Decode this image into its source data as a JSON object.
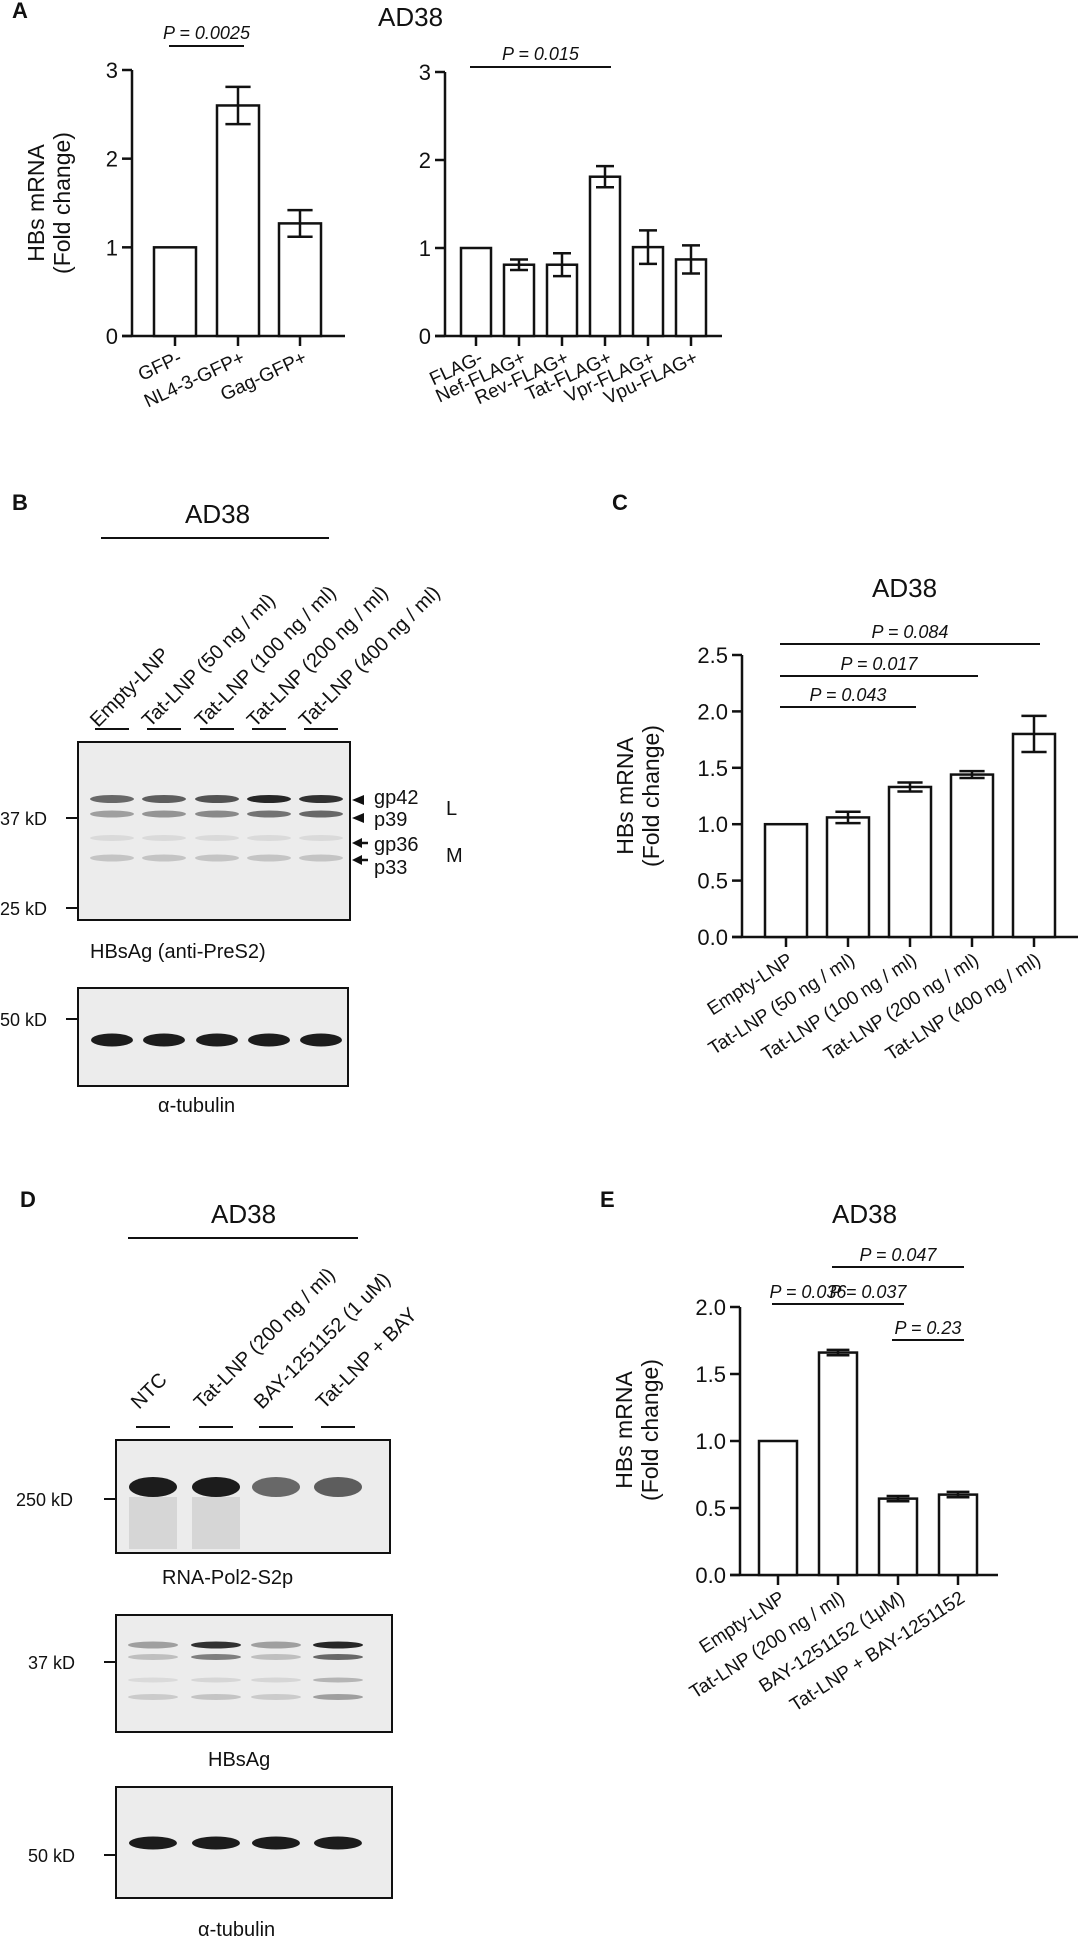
{
  "panels": {
    "A": {
      "letter": "A",
      "title": "AD38"
    },
    "B": {
      "letter": "B",
      "title": "AD38"
    },
    "C": {
      "letter": "C",
      "title": "AD38"
    },
    "D": {
      "letter": "D",
      "title": "AD38"
    },
    "E": {
      "letter": "E",
      "title": "AD38"
    }
  },
  "blot_B": {
    "lanes": [
      "Empty-LNP",
      "Tat-LNP (50 ng / ml)",
      "Tat-LNP (100 ng / ml)",
      "Tat-LNP (200 ng / ml)",
      "Tat-LNP (400 ng / ml)"
    ],
    "main": {
      "caption": "HBsAg (anti-PreS2)",
      "markers": [
        "37 kD",
        "25 kD"
      ],
      "bands": [
        "gp42",
        "p39",
        "gp36",
        "p33"
      ],
      "groups": [
        "L",
        "M"
      ]
    },
    "loading": {
      "caption": "α-tubulin",
      "marker": "50 kD"
    }
  },
  "blot_D": {
    "lanes": [
      "NTC",
      "Tat-LNP (200 ng / ml)",
      "BAY-1251152 (1 uM)",
      "Tat-LNP + BAY"
    ],
    "pol2": {
      "caption": "RNA-Pol2-S2p",
      "marker": "250 kD"
    },
    "hbsag": {
      "caption": "HBsAg",
      "marker": "37 kD"
    },
    "tubulin": {
      "caption": "α-tubulin",
      "marker": "50 kD"
    }
  },
  "chart_data": [
    {
      "id": "A-left",
      "type": "bar",
      "title": "AD38",
      "xlabel": "",
      "ylabel": "HBs mRNA (Fold change)",
      "ylabel_lines": [
        "HBs mRNA",
        "(Fold change)"
      ],
      "categories": [
        "GFP-",
        "NL4-3-GFP+",
        "Gag-GFP+"
      ],
      "values": [
        1.0,
        2.6,
        1.27
      ],
      "errors": [
        0,
        0.21,
        0.15
      ],
      "ylim": [
        0,
        3
      ],
      "yticks": [
        "0",
        "1",
        "2",
        "3"
      ],
      "significance": [
        {
          "from": 0,
          "to": 1,
          "label": "P = 0.0025"
        }
      ],
      "grid": false
    },
    {
      "id": "A-right",
      "type": "bar",
      "title": "AD38",
      "xlabel": "",
      "ylabel": "HBs mRNA (Fold change)",
      "categories": [
        "FLAG-",
        "Nef-FLAG+",
        "Rev-FLAG+",
        "Tat-FLAG+",
        "Vpr-FLAG+",
        "Vpu-FLAG+"
      ],
      "values": [
        1.0,
        0.81,
        0.81,
        1.81,
        1.01,
        0.87
      ],
      "errors": [
        0,
        0.06,
        0.13,
        0.12,
        0.19,
        0.16
      ],
      "ylim": [
        0,
        3
      ],
      "yticks": [
        "0",
        "1",
        "2",
        "3"
      ],
      "significance": [
        {
          "from": 0,
          "to": 3,
          "label": "P = 0.015"
        }
      ],
      "grid": false
    },
    {
      "id": "C",
      "type": "bar",
      "title": "AD38",
      "ylabel": "HBs mRNA (Fold change)",
      "ylabel_lines": [
        "HBs mRNA",
        "(Fold change)"
      ],
      "categories": [
        "Empty-LNP",
        "Tat-LNP (50 ng / ml)",
        "Tat-LNP (100 ng / ml)",
        "Tat-LNP (200 ng / ml)",
        "Tat-LNP (400 ng / ml)"
      ],
      "values": [
        1.0,
        1.06,
        1.33,
        1.44,
        1.8
      ],
      "errors": [
        0,
        0.05,
        0.04,
        0.03,
        0.16
      ],
      "ylim": [
        0,
        2.5
      ],
      "yticks": [
        "0.0",
        "0.5",
        "1.0",
        "1.5",
        "2.0",
        "2.5"
      ],
      "significance": [
        {
          "from": 0,
          "to": 2,
          "label": "P = 0.043"
        },
        {
          "from": 0,
          "to": 3,
          "label": "P = 0.017"
        },
        {
          "from": 0,
          "to": 4,
          "label": "P = 0.084"
        }
      ],
      "grid": false
    },
    {
      "id": "E",
      "type": "bar",
      "title": "AD38",
      "ylabel": "HBs mRNA (Fold change)",
      "ylabel_lines": [
        "HBs mRNA",
        "(Fold change)"
      ],
      "categories": [
        "Empty-LNP",
        "Tat-LNP (200 ng / ml)",
        "BAY-1251152 (1μM)",
        "Tat-LNP + BAY-1251152"
      ],
      "values": [
        1.0,
        1.66,
        0.57,
        0.6
      ],
      "errors": [
        0,
        0.02,
        0.02,
        0.02
      ],
      "ylim": [
        0,
        2.0
      ],
      "yticks": [
        "0.0",
        "0.5",
        "1.0",
        "1.5",
        "2.0"
      ],
      "significance": [
        {
          "from": 0,
          "to": 1,
          "label": "P = 0.036"
        },
        {
          "from": 1,
          "to": 2,
          "label": "P = 0.037"
        },
        {
          "from": 1,
          "to": 3,
          "label": "P = 0.047"
        },
        {
          "from": 2,
          "to": 3,
          "label": "P = 0.23"
        }
      ],
      "grid": false
    }
  ]
}
